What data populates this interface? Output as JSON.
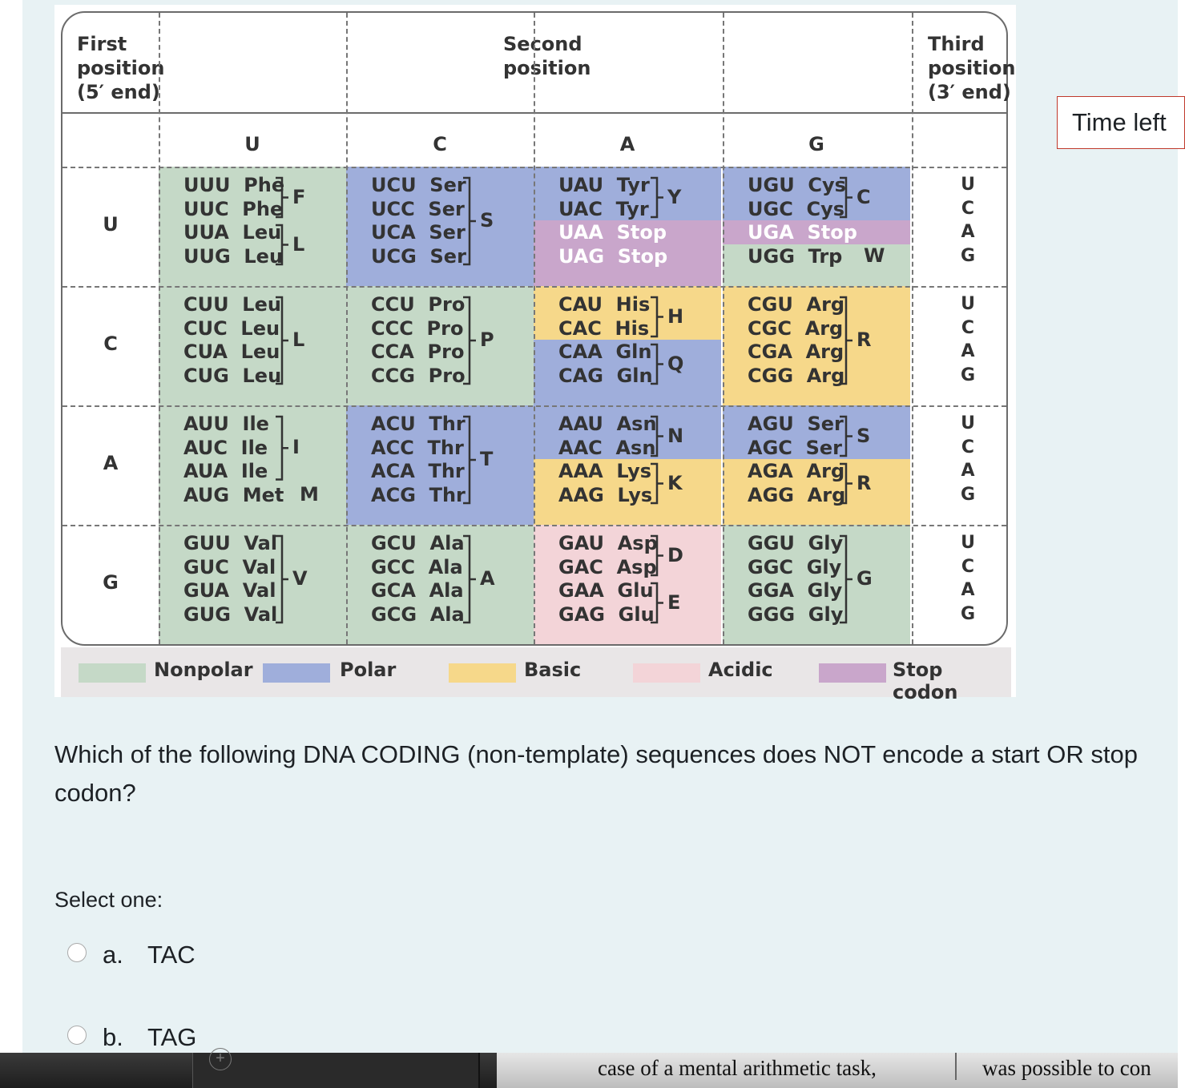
{
  "codon_table": {
    "first_position_header": [
      "First",
      "position",
      "(5′ end)"
    ],
    "second_position_header": [
      "Second",
      "position"
    ],
    "third_position_header": [
      "Third",
      "position",
      "(3′ end)"
    ],
    "columns": [
      "U",
      "C",
      "A",
      "G"
    ],
    "rows": [
      "U",
      "C",
      "A",
      "G"
    ],
    "third_labels": [
      "U",
      "C",
      "A",
      "G"
    ],
    "colors": {
      "nonpolar": "#c5d9c7",
      "polar": "#9faedb",
      "basic": "#f6d88a",
      "acidic": "#f3d4d8",
      "stop": "#c9a6cb"
    },
    "cells": [
      [
        {
          "codons": [
            "UUU Phe",
            "UUC Phe",
            "UUA Leu",
            "UUG Leu"
          ],
          "letters": [
            "F",
            "L"
          ]
        },
        {
          "codons": [
            "UCU Ser",
            "UCC Ser",
            "UCA Ser",
            "UCG Ser"
          ],
          "letters": [
            "S"
          ]
        },
        {
          "codons": [
            "UAU Tyr",
            "UAC Tyr",
            "UAA Stop",
            "UAG Stop"
          ],
          "letters": [
            "Y"
          ]
        },
        {
          "codons": [
            "UGU Cys",
            "UGC Cys",
            "UGA Stop",
            "UGG Trp"
          ],
          "letters": [
            "C",
            "W"
          ]
        }
      ],
      [
        {
          "codons": [
            "CUU Leu",
            "CUC Leu",
            "CUA Leu",
            "CUG Leu"
          ],
          "letters": [
            "L"
          ]
        },
        {
          "codons": [
            "CCU Pro",
            "CCC Pro",
            "CCA Pro",
            "CCG Pro"
          ],
          "letters": [
            "P"
          ]
        },
        {
          "codons": [
            "CAU His",
            "CAC His",
            "CAA Gln",
            "CAG Gln"
          ],
          "letters": [
            "H",
            "Q"
          ]
        },
        {
          "codons": [
            "CGU Arg",
            "CGC Arg",
            "CGA Arg",
            "CGG Arg"
          ],
          "letters": [
            "R"
          ]
        }
      ],
      [
        {
          "codons": [
            "AUU Ile",
            "AUC Ile",
            "AUA Ile",
            "AUG Met"
          ],
          "letters": [
            "I",
            "M"
          ]
        },
        {
          "codons": [
            "ACU Thr",
            "ACC Thr",
            "ACA Thr",
            "ACG Thr"
          ],
          "letters": [
            "T"
          ]
        },
        {
          "codons": [
            "AAU Asn",
            "AAC Asn",
            "AAA Lys",
            "AAG Lys"
          ],
          "letters": [
            "N",
            "K"
          ]
        },
        {
          "codons": [
            "AGU Ser",
            "AGC Ser",
            "AGA Arg",
            "AGG Arg"
          ],
          "letters": [
            "S",
            "R"
          ]
        }
      ],
      [
        {
          "codons": [
            "GUU Val",
            "GUC Val",
            "GUA Val",
            "GUG Val"
          ],
          "letters": [
            "V"
          ]
        },
        {
          "codons": [
            "GCU Ala",
            "GCC Ala",
            "GCA Ala",
            "GCG Ala"
          ],
          "letters": [
            "A"
          ]
        },
        {
          "codons": [
            "GAU Asp",
            "GAC Asp",
            "GAA Glu",
            "GAG Glu"
          ],
          "letters": [
            "D",
            "E"
          ]
        },
        {
          "codons": [
            "GGU Gly",
            "GGC Gly",
            "GGA Gly",
            "GGG Gly"
          ],
          "letters": [
            "G"
          ]
        }
      ]
    ],
    "legend": [
      "Nonpolar",
      "Polar",
      "Basic",
      "Acidic",
      "Stop codon"
    ]
  },
  "question": {
    "text": "Which of the following DNA CODING (non-template) sequences does NOT encode a start OR stop codon?",
    "select_label": "Select one:",
    "options": [
      {
        "letter": "a.",
        "text": "TAC"
      },
      {
        "letter": "b.",
        "text": "TAG"
      }
    ]
  },
  "timer": {
    "label": "Time left"
  },
  "taskbar": {
    "doc_text_left": "case of a mental arithmetic task,",
    "doc_text_right": "was possible to con"
  }
}
